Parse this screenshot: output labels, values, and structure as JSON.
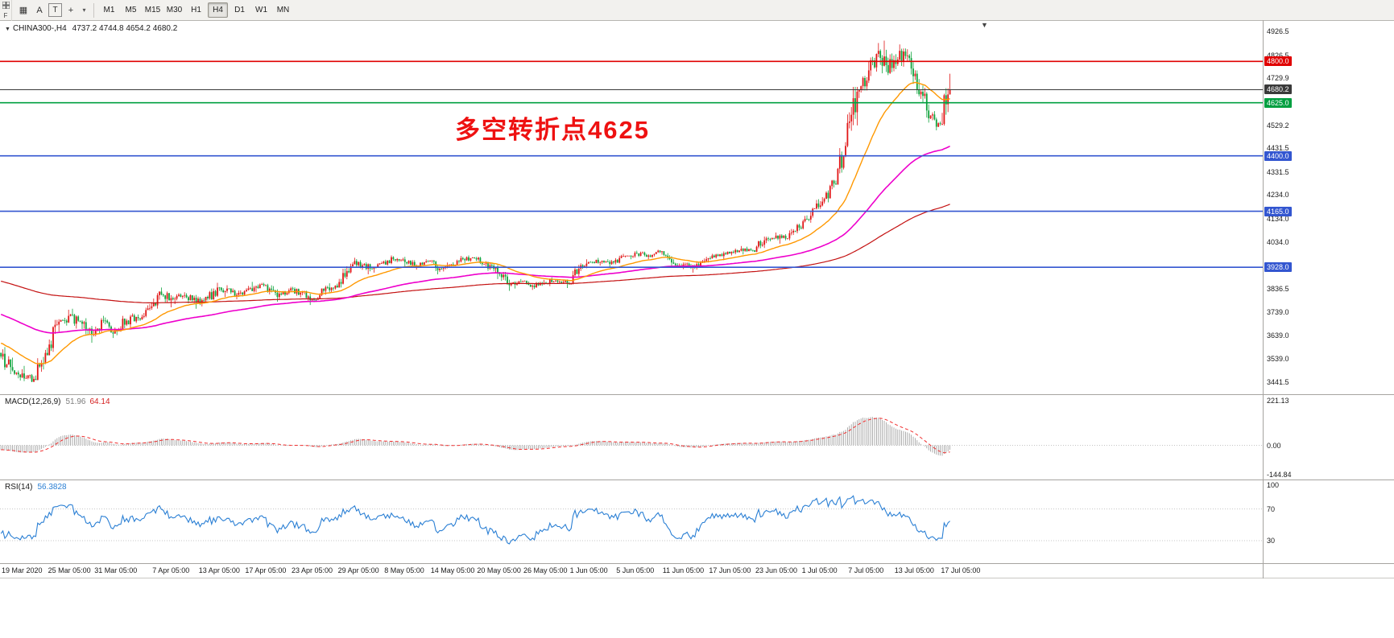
{
  "colors": {
    "up": "#e01616",
    "down": "#0fa33c",
    "ma_fast": "#ff9800",
    "ma_mid": "#ee00cc",
    "ma_slow": "#c41111",
    "level_red": "#e00000",
    "level_green": "#009f40",
    "level_blue": "#3356d0",
    "bid_line": "#3a3a3a",
    "macd_hist": "#9a9a9a",
    "macd_signal": "#f03030",
    "rsi_line": "#2a7fd4",
    "annotation": "#ee1111",
    "grid": "#c4c4c4"
  },
  "toolbar": {
    "left_rail_label": "F",
    "tools": [
      {
        "name": "charts-grid-icon",
        "glyph": "▦"
      },
      {
        "name": "annotation-tool-button",
        "label": "A"
      },
      {
        "name": "text-tool-button",
        "label": "T",
        "style": "boxed"
      },
      {
        "name": "crosshair-tool-button",
        "glyph": "+"
      },
      {
        "name": "tools-dropdown-icon",
        "glyph": "▾",
        "style": "small"
      }
    ],
    "timeframes": [
      "M1",
      "M5",
      "M15",
      "M30",
      "H1",
      "H4",
      "D1",
      "W1",
      "MN"
    ],
    "active_timeframe": "H4"
  },
  "chart": {
    "symbol": "CHINA300-,H4",
    "ohlc_text": "4737.2 4744.8 4654.2 4680.2",
    "annotation": "多空转折点4625",
    "bid": {
      "price": 4680.2,
      "label": "4680.2",
      "color": "#3a3a3a"
    },
    "levels": [
      {
        "price": 4800.0,
        "label": "4800.0",
        "color": "#e00000"
      },
      {
        "price": 4625.0,
        "label": "4625.0",
        "color": "#009f40"
      },
      {
        "price": 4400.0,
        "label": "4400.0",
        "color": "#3356d0"
      },
      {
        "price": 4165.0,
        "label": "4165.0",
        "color": "#3356d0"
      },
      {
        "price": 3928.0,
        "label": "3928.0",
        "color": "#3356d0"
      }
    ],
    "price_axis": [
      {
        "v": 4926.5,
        "t": "4926.5"
      },
      {
        "v": 4826.5,
        "t": "4826.5"
      },
      {
        "v": 4729.9,
        "t": "4729.9"
      },
      {
        "v": 4631.5,
        "t": "4631.5"
      },
      {
        "v": 4529.2,
        "t": "4529.2"
      },
      {
        "v": 4431.5,
        "t": "4431.5"
      },
      {
        "v": 4331.5,
        "t": "4331.5"
      },
      {
        "v": 4234.0,
        "t": "4234.0"
      },
      {
        "v": 4134.0,
        "t": "4134.0"
      },
      {
        "v": 4034.0,
        "t": "4034.0"
      },
      {
        "v": 3936.5,
        "t": "3936.5"
      },
      {
        "v": 3836.5,
        "t": "3836.5"
      },
      {
        "v": 3739.0,
        "t": "3739.0"
      },
      {
        "v": 3639.0,
        "t": "3639.0"
      },
      {
        "v": 3539.0,
        "t": "3539.0"
      },
      {
        "v": 3441.5,
        "t": "3441.5"
      }
    ]
  },
  "indicators": {
    "macd": {
      "label": "MACD(12,26,9)",
      "value_main": "51.96",
      "value_signal": "64.14",
      "axis": [
        {
          "v": 221.13,
          "t": "221.13"
        },
        {
          "v": 0,
          "t": "0.00"
        },
        {
          "v": -144.84,
          "t": "-144.84"
        }
      ]
    },
    "rsi": {
      "label": "RSI(14)",
      "value": "56.3828",
      "levels": [
        70,
        30
      ],
      "axis": [
        {
          "v": 100,
          "t": "100"
        },
        {
          "v": 70,
          "t": "70"
        },
        {
          "v": 30,
          "t": "30"
        }
      ]
    }
  },
  "time_axis": [
    {
      "text": "19 Mar 2020",
      "day": 0
    },
    {
      "text": "25 Mar 05:00",
      "day": 4
    },
    {
      "text": "31 Mar 05:00",
      "day": 8
    },
    {
      "text": "7 Apr 05:00",
      "day": 13
    },
    {
      "text": "13 Apr 05:00",
      "day": 17
    },
    {
      "text": "17 Apr 05:00",
      "day": 21
    },
    {
      "text": "23 Apr 05:00",
      "day": 25
    },
    {
      "text": "29 Apr 05:00",
      "day": 29
    },
    {
      "text": "8 May 05:00",
      "day": 33
    },
    {
      "text": "14 May 05:00",
      "day": 37
    },
    {
      "text": "20 May 05:00",
      "day": 41
    },
    {
      "text": "26 May 05:00",
      "day": 45
    },
    {
      "text": "1 Jun 05:00",
      "day": 49
    },
    {
      "text": "5 Jun 05:00",
      "day": 53
    },
    {
      "text": "11 Jun 05:00",
      "day": 57
    },
    {
      "text": "17 Jun 05:00",
      "day": 61
    },
    {
      "text": "23 Jun 05:00",
      "day": 65
    },
    {
      "text": "1 Jul 05:00",
      "day": 69
    },
    {
      "text": "7 Jul 05:00",
      "day": 73
    },
    {
      "text": "13 Jul 05:00",
      "day": 77
    },
    {
      "text": "17 Jul 05:00",
      "day": 81
    }
  ],
  "chart_data": {
    "type": "candlestick",
    "symbol": "CHINA300",
    "timeframe": "H4",
    "bars_per_day": 6,
    "price_range": {
      "min": 3390,
      "max": 4975
    },
    "warmup": {
      "days": 30,
      "start_price": 4120
    },
    "moving_averages": [
      {
        "name": "fast",
        "period": 34,
        "color": "#ff9800"
      },
      {
        "name": "mid",
        "period": 120,
        "color": "#ee00cc"
      },
      {
        "name": "slow",
        "period": 300,
        "color": "#c41111"
      }
    ],
    "days": [
      [
        "19 Mar",
        3565,
        3590,
        3475,
        3505
      ],
      [
        "20 Mar",
        3505,
        3545,
        3448,
        3478
      ],
      [
        "23 Mar",
        3478,
        3510,
        3441,
        3455
      ],
      [
        "24 Mar",
        3455,
        3578,
        3450,
        3565
      ],
      [
        "25 Mar",
        3565,
        3705,
        3555,
        3685
      ],
      [
        "26 Mar",
        3685,
        3748,
        3655,
        3722
      ],
      [
        "27 Mar",
        3722,
        3752,
        3668,
        3698
      ],
      [
        "30 Mar",
        3698,
        3712,
        3608,
        3642
      ],
      [
        "31 Mar",
        3642,
        3722,
        3635,
        3702
      ],
      [
        "1 Apr",
        3702,
        3715,
        3628,
        3662
      ],
      [
        "2 Apr",
        3662,
        3722,
        3640,
        3702
      ],
      [
        "3 Apr",
        3702,
        3732,
        3668,
        3712
      ],
      [
        "6 Apr",
        3712,
        3772,
        3700,
        3755
      ],
      [
        "7 Apr",
        3755,
        3842,
        3748,
        3812
      ],
      [
        "8 Apr",
        3812,
        3825,
        3758,
        3792
      ],
      [
        "9 Apr",
        3792,
        3822,
        3772,
        3810
      ],
      [
        "10 Apr",
        3810,
        3818,
        3752,
        3782
      ],
      [
        "13 Apr",
        3782,
        3808,
        3762,
        3796
      ],
      [
        "14 Apr",
        3796,
        3862,
        3790,
        3842
      ],
      [
        "15 Apr",
        3842,
        3852,
        3802,
        3822
      ],
      [
        "16 Apr",
        3822,
        3838,
        3792,
        3812
      ],
      [
        "17 Apr",
        3812,
        3866,
        3806,
        3842
      ],
      [
        "20 Apr",
        3842,
        3862,
        3822,
        3852
      ],
      [
        "21 Apr",
        3852,
        3858,
        3782,
        3802
      ],
      [
        "22 Apr",
        3802,
        3838,
        3790,
        3830
      ],
      [
        "23 Apr",
        3830,
        3845,
        3800,
        3820
      ],
      [
        "24 Apr",
        3820,
        3828,
        3768,
        3792
      ],
      [
        "27 Apr",
        3792,
        3838,
        3780,
        3828
      ],
      [
        "28 Apr",
        3828,
        3860,
        3812,
        3850
      ],
      [
        "29 Apr",
        3850,
        3932,
        3842,
        3912
      ],
      [
        "30 Apr",
        3912,
        3968,
        3902,
        3950
      ],
      [
        "6 May",
        3950,
        3958,
        3898,
        3922
      ],
      [
        "7 May",
        3922,
        3952,
        3905,
        3945
      ],
      [
        "8 May",
        3945,
        3978,
        3935,
        3962
      ],
      [
        "11 May",
        3962,
        3972,
        3932,
        3950
      ],
      [
        "12 May",
        3950,
        3958,
        3918,
        3935
      ],
      [
        "13 May",
        3935,
        3962,
        3925,
        3952
      ],
      [
        "14 May",
        3952,
        3958,
        3898,
        3922
      ],
      [
        "15 May",
        3922,
        3948,
        3910,
        3940
      ],
      [
        "18 May",
        3940,
        3976,
        3932,
        3962
      ],
      [
        "19 May",
        3962,
        3978,
        3945,
        3966
      ],
      [
        "20 May",
        3966,
        3972,
        3932,
        3945
      ],
      [
        "21 May",
        3945,
        3952,
        3878,
        3902
      ],
      [
        "22 May",
        3902,
        3908,
        3828,
        3852
      ],
      [
        "25 May",
        3852,
        3878,
        3838,
        3866
      ],
      [
        "26 May",
        3866,
        3872,
        3832,
        3850
      ],
      [
        "27 May",
        3850,
        3875,
        3836,
        3862
      ],
      [
        "28 May",
        3862,
        3885,
        3848,
        3872
      ],
      [
        "29 May",
        3872,
        3878,
        3840,
        3860
      ],
      [
        "1 Jun",
        3860,
        3938,
        3855,
        3922
      ],
      [
        "2 Jun",
        3922,
        3962,
        3912,
        3950
      ],
      [
        "3 Jun",
        3950,
        3968,
        3935,
        3955
      ],
      [
        "4 Jun",
        3955,
        3962,
        3928,
        3948
      ],
      [
        "5 Jun",
        3948,
        3985,
        3940,
        3976
      ],
      [
        "8 Jun",
        3976,
        3998,
        3962,
        3986
      ],
      [
        "9 Jun",
        3986,
        3995,
        3962,
        3978
      ],
      [
        "10 Jun",
        3978,
        4002,
        3968,
        3992
      ],
      [
        "11 Jun",
        3992,
        3996,
        3928,
        3948
      ],
      [
        "12 Jun",
        3948,
        3962,
        3920,
        3940
      ],
      [
        "15 Jun",
        3940,
        3948,
        3905,
        3926
      ],
      [
        "16 Jun",
        3926,
        3972,
        3918,
        3962
      ],
      [
        "17 Jun",
        3962,
        3985,
        3948,
        3976
      ],
      [
        "18 Jun",
        3976,
        3995,
        3958,
        3986
      ],
      [
        "19 Jun",
        3986,
        4018,
        3978,
        4006
      ],
      [
        "22 Jun",
        4006,
        4015,
        3982,
        4000
      ],
      [
        "23 Jun",
        4000,
        4058,
        3992,
        4042
      ],
      [
        "24 Jun",
        4042,
        4075,
        4030,
        4062
      ],
      [
        "29 Jun",
        4062,
        4068,
        4028,
        4050
      ],
      [
        "30 Jun",
        4050,
        4112,
        4042,
        4096
      ],
      [
        "1 Jul",
        4096,
        4162,
        4088,
        4146
      ],
      [
        "2 Jul",
        4146,
        4225,
        4138,
        4206
      ],
      [
        "3 Jul",
        4206,
        4298,
        4198,
        4282
      ],
      [
        "6 Jul",
        4282,
        4458,
        4278,
        4442
      ],
      [
        "7 Jul",
        4442,
        4692,
        4436,
        4672
      ],
      [
        "8 Jul",
        4672,
        4802,
        4645,
        4762
      ],
      [
        "9 Jul",
        4762,
        4878,
        4738,
        4815
      ],
      [
        "10 Jul",
        4815,
        4888,
        4742,
        4772
      ],
      [
        "13 Jul",
        4772,
        4872,
        4758,
        4842
      ],
      [
        "14 Jul",
        4842,
        4855,
        4705,
        4748
      ],
      [
        "15 Jul",
        4748,
        4762,
        4562,
        4592
      ],
      [
        "16 Jul",
        4592,
        4618,
        4508,
        4538
      ],
      [
        "17 Jul",
        4538,
        4748,
        4528,
        4680.2
      ]
    ]
  }
}
